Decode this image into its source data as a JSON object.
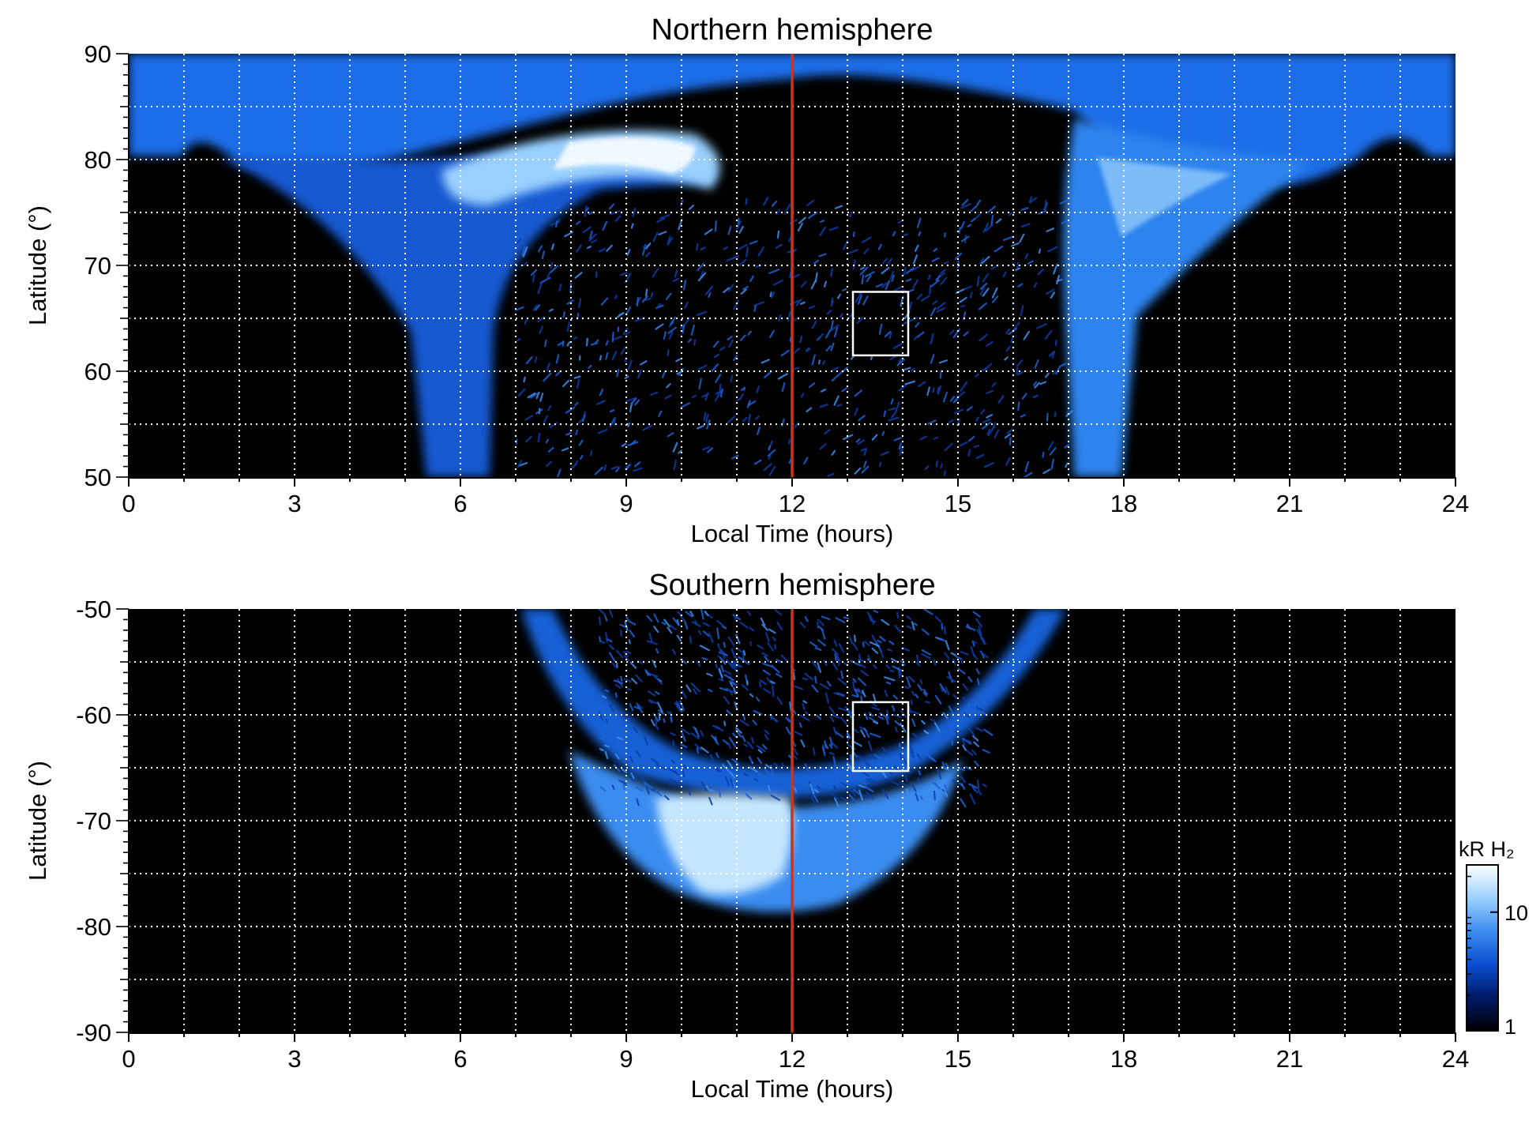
{
  "chart_data": [
    {
      "type": "heatmap",
      "title": "Northern hemisphere",
      "xlabel": "Local Time (hours)",
      "ylabel": "Latitude (°)",
      "xlim": [
        0,
        24
      ],
      "ylim": [
        50,
        90
      ],
      "xticks": [
        0,
        3,
        6,
        9,
        12,
        15,
        18,
        21,
        24
      ],
      "yticks": [
        50,
        60,
        70,
        80,
        90
      ],
      "grid": true,
      "grid_x_step": 1,
      "grid_y_step": 5,
      "background_color": "#000000",
      "reference_line": {
        "x": 12,
        "color": "#c8341c"
      },
      "highlight_box": {
        "x": [
          13.1,
          14.1
        ],
        "y": [
          61.5,
          67.5
        ],
        "color": "#ffffff"
      },
      "emission_regions": [
        {
          "label": "polar cap band",
          "lt_range": [
            0,
            24
          ],
          "lat_range": [
            80,
            90
          ],
          "intensity_kR": 8
        },
        {
          "label": "dawn arc",
          "lt_range": [
            3.5,
            7.5
          ],
          "lat_range": [
            50,
            80
          ],
          "intensity_kR": 8
        },
        {
          "label": "prenoon bright arc",
          "lt_range": [
            6,
            11
          ],
          "lat_range": [
            74,
            84
          ],
          "intensity_kR": 20
        },
        {
          "label": "dusk arc",
          "lt_range": [
            17,
            20.5
          ],
          "lat_range": [
            50,
            80
          ],
          "intensity_kR": 8
        },
        {
          "label": "dayside patchy emission",
          "lt_range": [
            7,
            17
          ],
          "lat_range": [
            50,
            76
          ],
          "intensity_kR": 2
        }
      ]
    },
    {
      "type": "heatmap",
      "title": "Southern hemisphere",
      "xlabel": "Local Time (hours)",
      "ylabel": "Latitude (°)",
      "xlim": [
        0,
        24
      ],
      "ylim": [
        -90,
        -50
      ],
      "xticks": [
        0,
        3,
        6,
        9,
        12,
        15,
        18,
        21,
        24
      ],
      "yticks": [
        -90,
        -80,
        -70,
        -60,
        -50
      ],
      "grid": true,
      "grid_x_step": 1,
      "grid_y_step": 5,
      "background_color": "#000000",
      "reference_line": {
        "x": 12,
        "color": "#c8341c"
      },
      "highlight_box": {
        "x": [
          13.1,
          14.1
        ],
        "y": [
          -65.3,
          -58.8
        ],
        "color": "#ffffff"
      },
      "emission_regions": [
        {
          "label": "auroral oval",
          "lt_range": [
            7,
            17
          ],
          "lat_range": [
            -79,
            -50
          ],
          "intensity_kR": 8
        },
        {
          "label": "prenoon bright region",
          "lt_range": [
            9.5,
            12.5
          ],
          "lat_range": [
            -78,
            -70
          ],
          "intensity_kR": 20
        },
        {
          "label": "patchy interior",
          "lt_range": [
            8.5,
            15.5
          ],
          "lat_range": [
            -68,
            -50
          ],
          "intensity_kR": 2
        }
      ]
    }
  ],
  "colorbar": {
    "label": "kR H₂",
    "scale": "log",
    "range": [
      1,
      25
    ],
    "ticks": [
      {
        "value": 10,
        "label": "10"
      },
      {
        "value": 1,
        "label": "1"
      }
    ],
    "colors": [
      "#000000",
      "#001a66",
      "#0a4fd0",
      "#3c8cf0",
      "#9cd0ff",
      "#ffffff"
    ]
  }
}
